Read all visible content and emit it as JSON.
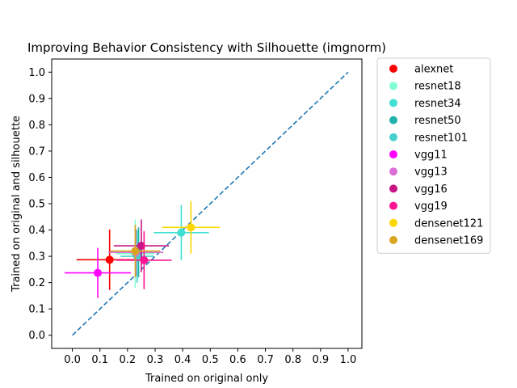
{
  "chart_data": {
    "type": "scatter",
    "title": "Improving Behavior Consistency with Silhouette (imgnorm)",
    "xlabel": "Trained on original only",
    "ylabel": "Trained on original and silhouette",
    "xlim": [
      -0.075,
      1.05
    ],
    "ylim": [
      -0.05,
      1.05
    ],
    "xticks": [
      "0.0",
      "0.1",
      "0.2",
      "0.3",
      "0.4",
      "0.5",
      "0.6",
      "0.7",
      "0.8",
      "0.9",
      "1.0"
    ],
    "yticks": [
      "0.0",
      "0.1",
      "0.2",
      "0.3",
      "0.4",
      "0.5",
      "0.6",
      "0.7",
      "0.8",
      "0.9",
      "1.0"
    ],
    "grid": false,
    "legend_position": "outside-right",
    "reference_line": {
      "x": [
        0,
        1
      ],
      "y": [
        0,
        1
      ],
      "style": "dashed",
      "color": "#1f77b4"
    },
    "series": [
      {
        "name": "alexnet",
        "color": "#ff0000",
        "x": 0.135,
        "y": 0.287,
        "xerr": 0.12,
        "yerr": 0.115
      },
      {
        "name": "resnet18",
        "color": "#7fffd4",
        "x": 0.228,
        "y": 0.31,
        "xerr": 0.07,
        "yerr": 0.13
      },
      {
        "name": "resnet34",
        "color": "#40e0d0",
        "x": 0.395,
        "y": 0.39,
        "xerr": 0.1,
        "yerr": 0.105
      },
      {
        "name": "resnet50",
        "color": "#20b2aa",
        "x": 0.24,
        "y": 0.315,
        "xerr": 0.08,
        "yerr": 0.095
      },
      {
        "name": "resnet101",
        "color": "#48d1cc",
        "x": 0.235,
        "y": 0.3,
        "xerr": 0.06,
        "yerr": 0.1
      },
      {
        "name": "vgg11",
        "color": "#ff00ff",
        "x": 0.092,
        "y": 0.237,
        "xerr": 0.12,
        "yerr": 0.095
      },
      {
        "name": "vgg13",
        "color": "#da70d6",
        "x": 0.23,
        "y": 0.315,
        "xerr": 0.1,
        "yerr": 0.09
      },
      {
        "name": "vgg16",
        "color": "#c71585",
        "x": 0.25,
        "y": 0.34,
        "xerr": 0.1,
        "yerr": 0.1
      },
      {
        "name": "vgg19",
        "color": "#ff1493",
        "x": 0.26,
        "y": 0.285,
        "xerr": 0.1,
        "yerr": 0.11
      },
      {
        "name": "densenet121",
        "color": "#ffd700",
        "x": 0.43,
        "y": 0.41,
        "xerr": 0.105,
        "yerr": 0.1
      },
      {
        "name": "densenet169",
        "color": "#daa520",
        "x": 0.228,
        "y": 0.32,
        "xerr": 0.09,
        "yerr": 0.1
      }
    ]
  }
}
